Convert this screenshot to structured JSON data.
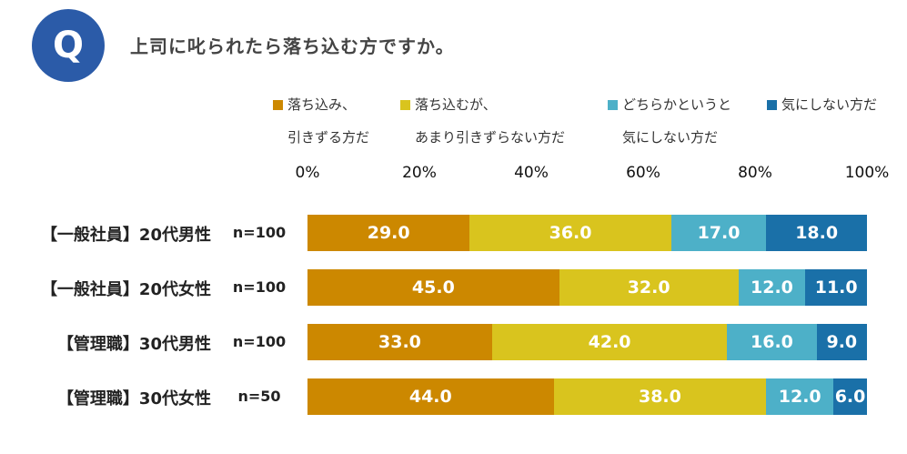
{
  "header": {
    "badge": "Q",
    "title": "上司に叱られたら落ち込む方ですか。"
  },
  "chart_data": {
    "type": "bar",
    "orientation": "horizontal-stacked-100",
    "title": "上司に叱られたら落ち込む方ですか。",
    "xlim": [
      0,
      100
    ],
    "ticks": [
      "0%",
      "20%",
      "40%",
      "60%",
      "80%",
      "100%"
    ],
    "legend": [
      {
        "line1": "落ち込み、",
        "line2": "引きずる方だ",
        "color": "#cc8800"
      },
      {
        "line1": "落ち込むが、",
        "line2": "あまり引きずらない方だ",
        "color": "#d9c41e"
      },
      {
        "line1": "どちらかというと",
        "line2": "気にしない方だ",
        "color": "#4db0c8"
      },
      {
        "line1": "気にしない方だ",
        "line2": "",
        "color": "#1a70a8"
      }
    ],
    "categories": [
      "【一般社員】20代男性",
      "【一般社員】20代女性",
      "【管理職】30代男性",
      "【管理職】30代女性"
    ],
    "n": [
      "n=100",
      "n=100",
      "n=100",
      "n=50"
    ],
    "series": [
      {
        "name": "落ち込み、引きずる方だ",
        "values": [
          29.0,
          45.0,
          33.0,
          44.0
        ]
      },
      {
        "name": "落ち込むが、あまり引きずらない方だ",
        "values": [
          36.0,
          32.0,
          42.0,
          38.0
        ]
      },
      {
        "name": "どちらかというと気にしない方だ",
        "values": [
          17.0,
          12.0,
          16.0,
          12.0
        ]
      },
      {
        "name": "気にしない方だ",
        "values": [
          18.0,
          11.0,
          9.0,
          6.0
        ]
      }
    ]
  }
}
